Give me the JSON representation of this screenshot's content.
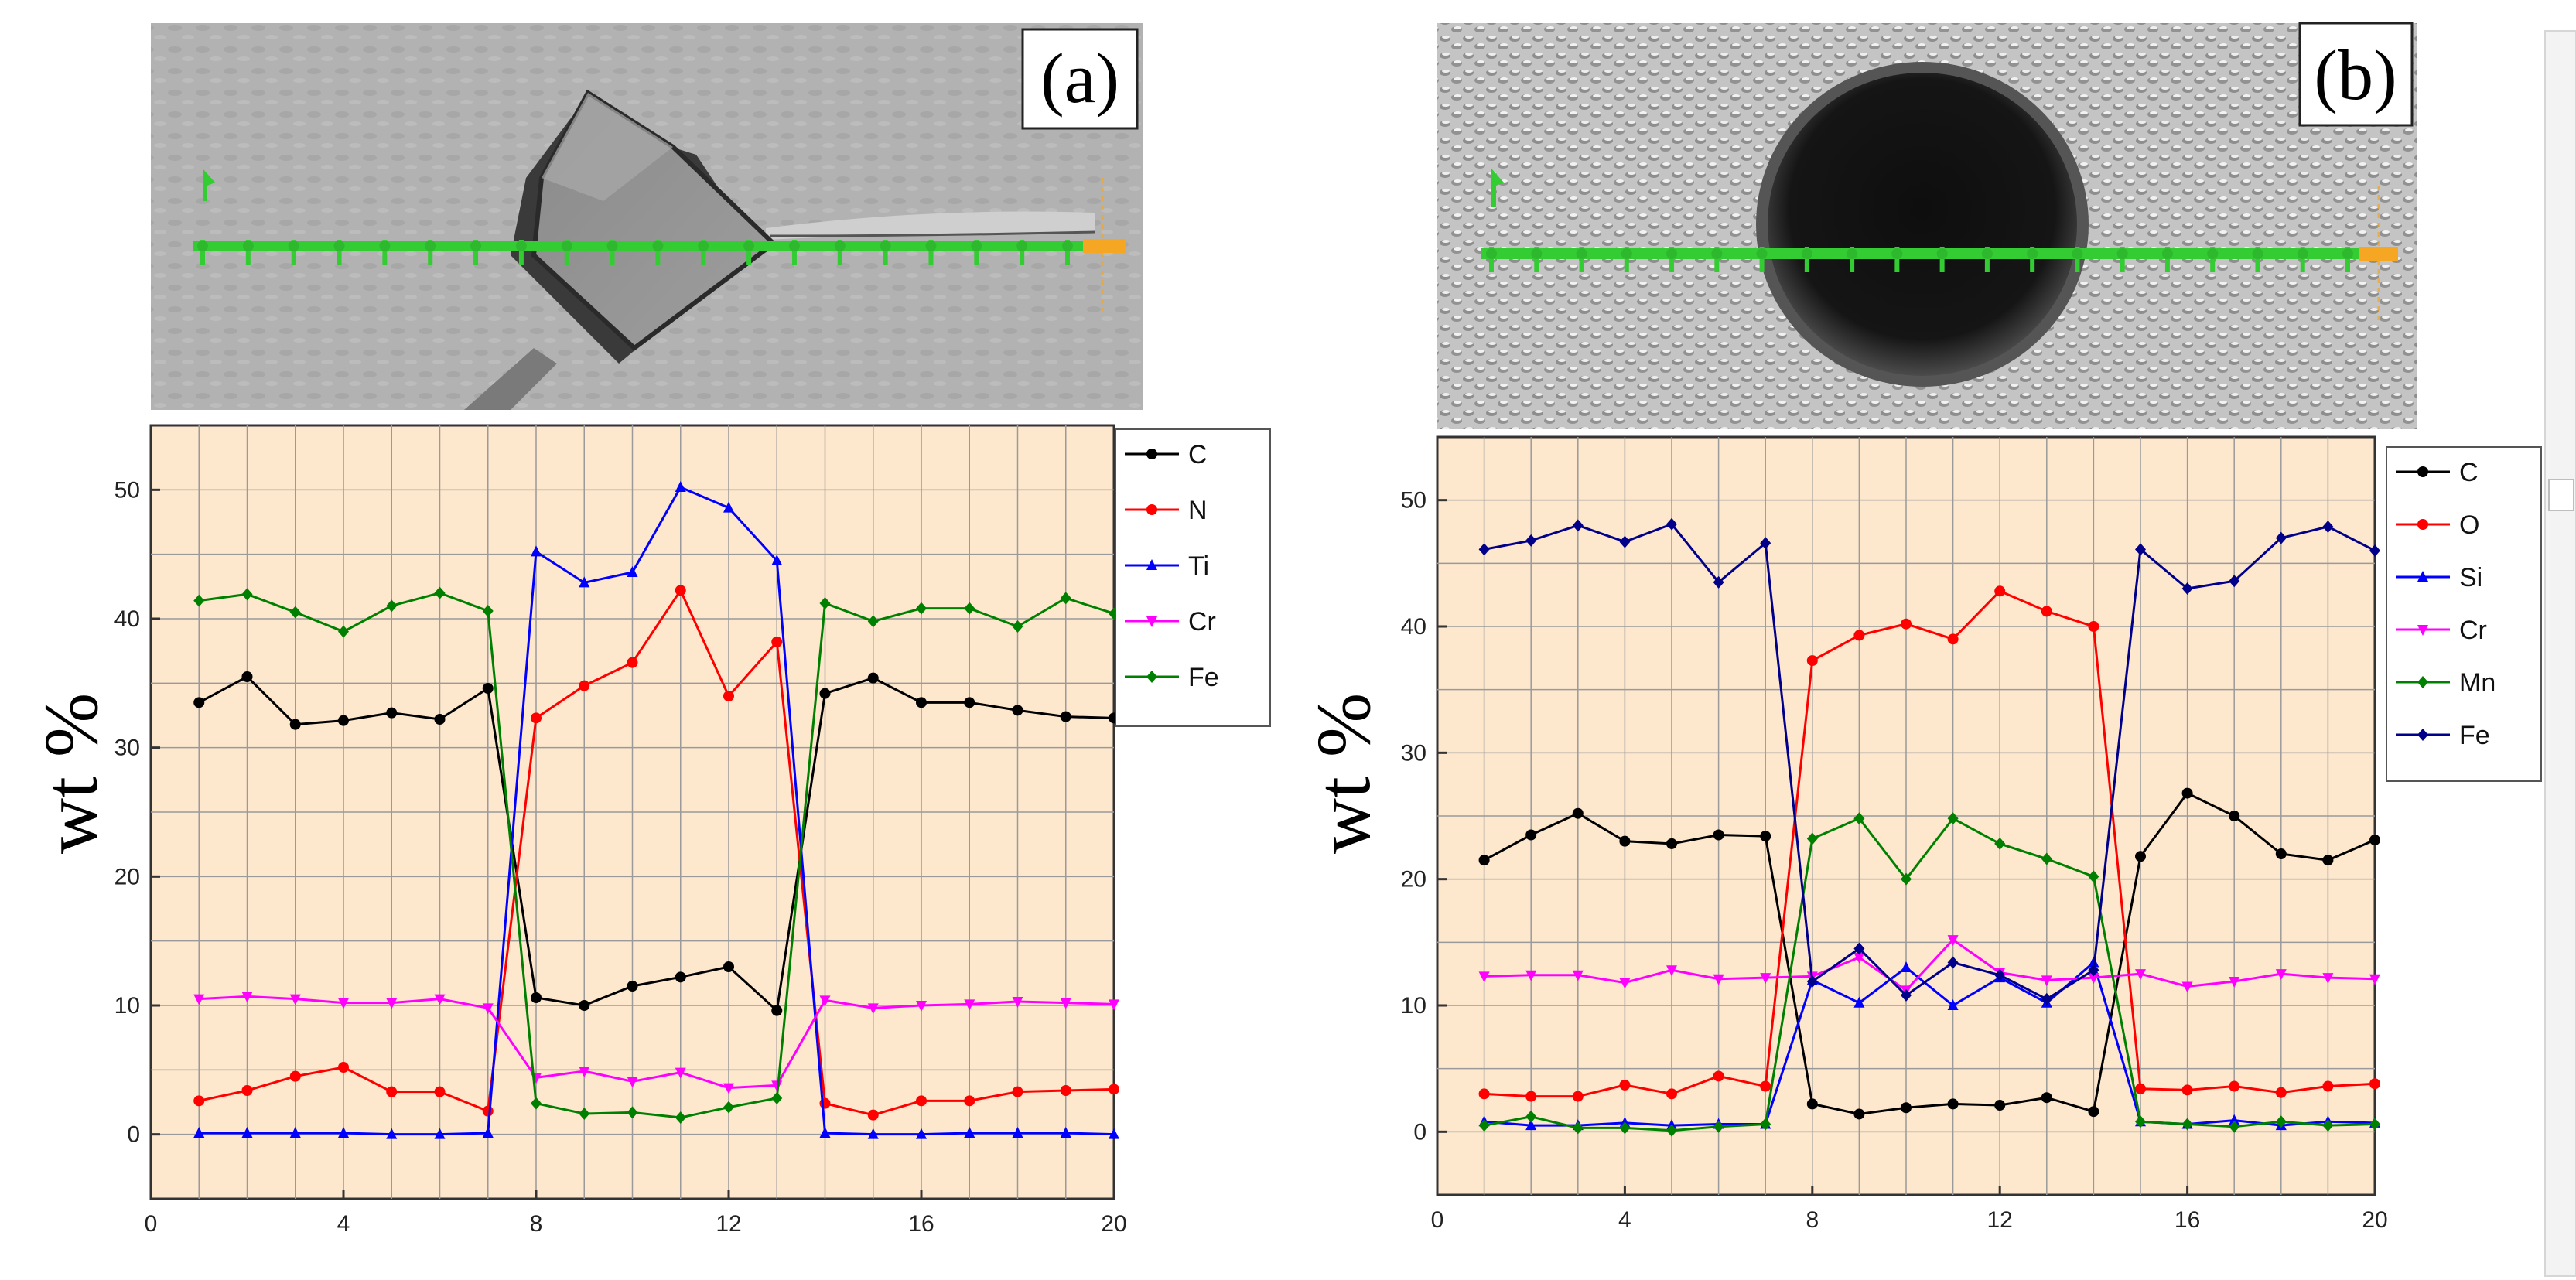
{
  "chart_data": [
    {
      "type": "line",
      "panel_label": "(a)",
      "x": [
        1,
        2,
        3,
        4,
        5,
        6,
        7,
        8,
        9,
        10,
        11,
        12,
        13,
        14,
        15,
        16,
        17,
        18,
        19,
        20
      ],
      "xlim": [
        0,
        20
      ],
      "ylim": [
        -5,
        55
      ],
      "xticks": [
        0,
        4,
        8,
        12,
        16,
        20
      ],
      "yticks": [
        0,
        10,
        20,
        30,
        40,
        50
      ],
      "xlabel": "",
      "ylabel": "wt %",
      "grid": true,
      "legend_position": "top-right",
      "series": [
        {
          "name": "C",
          "color": "#000000",
          "marker": "circle",
          "values": [
            33.5,
            35.5,
            31.8,
            32.1,
            32.7,
            32.2,
            34.6,
            10.6,
            10.0,
            11.5,
            12.2,
            13.0,
            9.6,
            34.2,
            35.4,
            33.5,
            33.5,
            32.9,
            32.4,
            32.3
          ]
        },
        {
          "name": "N",
          "color": "#ff0000",
          "marker": "circle",
          "values": [
            2.6,
            3.4,
            4.5,
            5.2,
            3.3,
            3.3,
            1.8,
            32.3,
            34.8,
            36.6,
            42.2,
            34.0,
            38.2,
            2.4,
            1.5,
            2.6,
            2.6,
            3.3,
            3.4,
            3.5
          ]
        },
        {
          "name": "Ti",
          "color": "#0000ff",
          "marker": "triangle-up",
          "values": [
            0.1,
            0.1,
            0.1,
            0.1,
            0.0,
            0.0,
            0.1,
            45.2,
            42.8,
            43.6,
            50.2,
            48.6,
            44.5,
            0.1,
            0.0,
            0.0,
            0.1,
            0.1,
            0.1,
            0.0
          ]
        },
        {
          "name": "Cr",
          "color": "#ff00ff",
          "marker": "triangle-down",
          "values": [
            10.5,
            10.7,
            10.5,
            10.2,
            10.2,
            10.5,
            9.8,
            4.4,
            4.9,
            4.1,
            4.8,
            3.6,
            3.8,
            10.4,
            9.8,
            10.0,
            10.1,
            10.3,
            10.2,
            10.1
          ]
        },
        {
          "name": "Fe",
          "color": "#008000",
          "marker": "diamond",
          "values": [
            41.4,
            41.9,
            40.5,
            39.0,
            41.0,
            42.0,
            40.6,
            2.4,
            1.6,
            1.7,
            1.3,
            2.1,
            2.8,
            41.2,
            39.8,
            40.8,
            40.8,
            39.4,
            41.6,
            40.4
          ]
        }
      ]
    },
    {
      "type": "line",
      "panel_label": "(b)",
      "x": [
        1,
        2,
        3,
        4,
        5,
        6,
        7,
        8,
        9,
        10,
        11,
        12,
        13,
        14,
        15,
        16,
        17,
        18,
        19,
        20
      ],
      "xlim": [
        0,
        20
      ],
      "ylim": [
        -5,
        55
      ],
      "xticks": [
        0,
        4,
        8,
        12,
        16,
        20
      ],
      "yticks": [
        0,
        10,
        20,
        30,
        40,
        50
      ],
      "xlabel": "",
      "ylabel": "wt %",
      "grid": true,
      "legend_position": "top-right",
      "series": [
        {
          "name": "C",
          "color": "#000000",
          "marker": "circle",
          "values": [
            21.5,
            23.5,
            25.2,
            23.0,
            22.8,
            23.5,
            23.4,
            2.2,
            1.4,
            1.9,
            2.2,
            2.1,
            2.7,
            1.6,
            21.8,
            26.8,
            25.0,
            22.0,
            21.5,
            23.1
          ]
        },
        {
          "name": "O",
          "color": "#ff0000",
          "marker": "circle",
          "values": [
            3.0,
            2.8,
            2.8,
            3.7,
            3.0,
            4.4,
            3.6,
            37.3,
            39.3,
            40.2,
            39.0,
            42.8,
            41.2,
            40.0,
            3.4,
            3.3,
            3.6,
            3.1,
            3.6,
            3.8
          ]
        },
        {
          "name": "Si",
          "color": "#0000ff",
          "marker": "triangle-up",
          "values": [
            0.8,
            0.5,
            0.5,
            0.7,
            0.5,
            0.6,
            0.6,
            12.0,
            10.2,
            13.0,
            10.0,
            12.2,
            10.2,
            13.4,
            0.8,
            0.6,
            0.9,
            0.5,
            0.8,
            0.7
          ]
        },
        {
          "name": "Cr",
          "color": "#ff00ff",
          "marker": "triangle-down",
          "values": [
            12.3,
            12.4,
            12.4,
            11.8,
            12.8,
            12.1,
            12.2,
            12.3,
            13.8,
            11.2,
            15.2,
            12.6,
            12.0,
            12.2,
            12.5,
            11.5,
            11.9,
            12.5,
            12.2,
            12.1
          ]
        },
        {
          "name": "Mn",
          "color": "#008000",
          "marker": "diamond",
          "values": [
            0.5,
            1.2,
            0.3,
            0.3,
            0.1,
            0.4,
            0.6,
            23.2,
            24.8,
            20.0,
            24.8,
            22.8,
            21.6,
            20.2,
            0.8,
            0.6,
            0.4,
            0.8,
            0.5,
            0.6
          ]
        },
        {
          "name": "Fe",
          "color": "#00008b",
          "marker": "diamond",
          "values": [
            46.1,
            46.8,
            48.0,
            46.7,
            48.1,
            43.5,
            46.6,
            11.9,
            14.5,
            10.8,
            13.4,
            12.4,
            10.5,
            12.8,
            46.1,
            43.0,
            43.6,
            47.0,
            47.9,
            46.0
          ]
        }
      ]
    }
  ],
  "colors": {
    "plot_background": "#fde7cd",
    "green_line": "#33cc33",
    "orange_cap": "#f5a623"
  }
}
